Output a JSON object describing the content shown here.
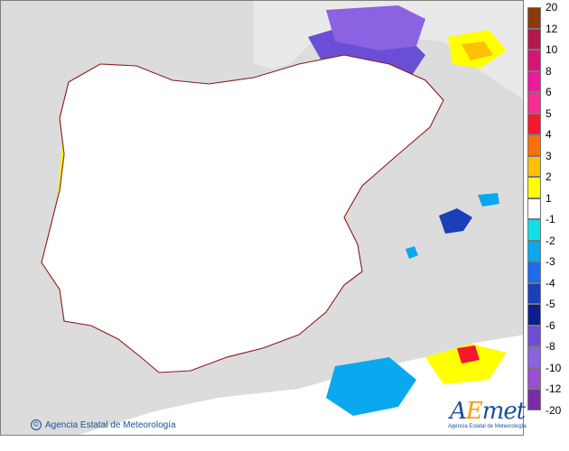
{
  "map": {
    "region": "Iberian Peninsula and Balearic Islands",
    "variable": "temperature anomaly (colour scale)",
    "background_color": "#dcdcdc",
    "border_color": "#8b1a1a"
  },
  "credit": {
    "text": "Agencia Estatal de Meteorología",
    "icon": "copyright-icon"
  },
  "logo": {
    "word": "AEmet",
    "subtitle": "Agencia Estatal de Meteorología"
  },
  "legend": {
    "labels": [
      "20",
      "12",
      "10",
      "8",
      "6",
      "5",
      "4",
      "3",
      "2",
      "1",
      "-1",
      "-2",
      "-3",
      "-4",
      "-5",
      "-6",
      "-8",
      "-10",
      "-12",
      "-20"
    ],
    "swatches": [
      {
        "color": "#8c3a08"
      },
      {
        "color": "#b4174b"
      },
      {
        "color": "#d61574"
      },
      {
        "color": "#f0189c"
      },
      {
        "color": "#fa2b93"
      },
      {
        "color": "#f6162e"
      },
      {
        "color": "#fb6e09"
      },
      {
        "color": "#ffc005"
      },
      {
        "color": "#ffff00"
      },
      {
        "color": "#ffffff"
      },
      {
        "color": "#10e0e6"
      },
      {
        "color": "#0aa8ee"
      },
      {
        "color": "#1b6cf0"
      },
      {
        "color": "#1a3fb8"
      },
      {
        "color": "#0e1d8e"
      },
      {
        "color": "#6a4fd6"
      },
      {
        "color": "#8b62e2"
      },
      {
        "color": "#9a4ed6"
      },
      {
        "color": "#7b2ba8"
      }
    ]
  }
}
